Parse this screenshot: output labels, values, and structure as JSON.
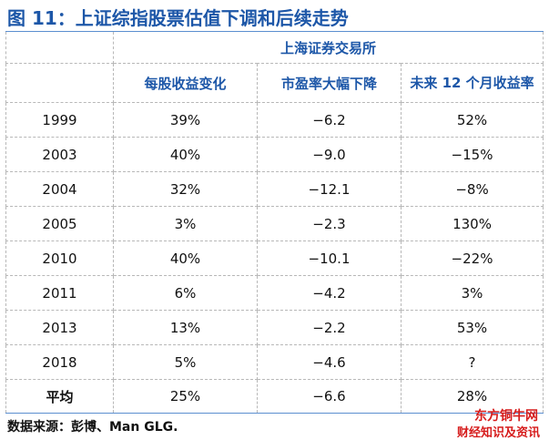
{
  "title": "图 11：上证综指股票估值下调和后续走势",
  "table": {
    "exchange": "上海证券交易所",
    "headers": [
      "每股收益变化",
      "市盈率大幅下降",
      "未来 12 个月收益率"
    ],
    "rows": [
      {
        "year": "1999",
        "eps": "39%",
        "pe": "−6.2",
        "ret": "52%"
      },
      {
        "year": "2003",
        "eps": "40%",
        "pe": "−9.0",
        "ret": "−15%"
      },
      {
        "year": "2004",
        "eps": "32%",
        "pe": "−12.1",
        "ret": "−8%"
      },
      {
        "year": "2005",
        "eps": "3%",
        "pe": "−2.3",
        "ret": "130%"
      },
      {
        "year": "2010",
        "eps": "40%",
        "pe": "−10.1",
        "ret": "−22%"
      },
      {
        "year": "2011",
        "eps": "6%",
        "pe": "−4.2",
        "ret": "3%"
      },
      {
        "year": "2013",
        "eps": "13%",
        "pe": "−2.2",
        "ret": "53%"
      },
      {
        "year": "2018",
        "eps": "5%",
        "pe": "−4.6",
        "ret": "?"
      }
    ],
    "average": {
      "label": "平均",
      "eps": "25%",
      "pe": "−6.6",
      "ret": "28%"
    }
  },
  "source": "数据来源：彭博、Man GLG.",
  "watermark": {
    "line1": "东方铜牛网",
    "line2": "财经知识及资讯"
  }
}
